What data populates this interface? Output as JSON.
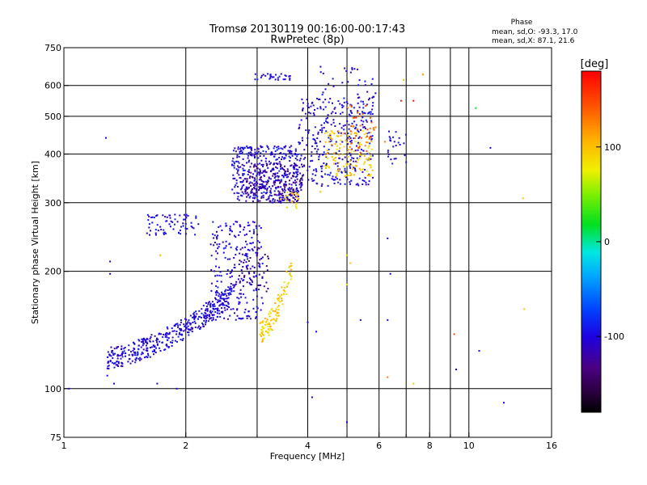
{
  "chart_data": {
    "type": "scatter",
    "title": "Tromsø 20130119 00:16:00-00:17:43",
    "subtitle": "RwPretec (8p)",
    "xlabel": "Frequency [MHz]",
    "ylabel": "Stationary phase Virtual Height [km]",
    "x_scale": "log",
    "y_scale": "log",
    "xlim": [
      1,
      16
    ],
    "ylim": [
      75,
      750
    ],
    "x_ticks": [
      1,
      2,
      4,
      6,
      8,
      10,
      16
    ],
    "x_ticks_minor": [
      3,
      5,
      7,
      9
    ],
    "y_ticks": [
      75,
      100,
      200,
      300,
      400,
      500,
      600,
      750
    ],
    "y_gridlines": [
      100,
      200,
      300,
      400,
      500,
      600
    ],
    "x_gridlines": [
      2,
      3,
      4,
      5,
      6,
      7,
      8,
      9,
      10
    ],
    "grid": true,
    "stats": {
      "heading": "Phase",
      "line1": "mean, sd,O: -93.3, 17.0",
      "line2": "mean, sd,X:  87.1, 21.6"
    },
    "colorbar": {
      "label": "[deg]",
      "ticks": [
        100,
        0,
        -100
      ],
      "range": [
        -180,
        180
      ],
      "colormap": "rainbow"
    },
    "series": [
      {
        "color_phase_deg": -100,
        "clusters": [
          {
            "fmin": 1.28,
            "fmax": 2.6,
            "hmin": 117,
            "hmax": 170,
            "count": 420,
            "curve": true
          },
          {
            "fmin": 2.3,
            "fmax": 3.1,
            "hmin": 150,
            "hmax": 270,
            "count": 260
          },
          {
            "fmin": 1.6,
            "fmax": 2.15,
            "hmin": 248,
            "hmax": 280,
            "count": 70
          },
          {
            "fmin": 2.6,
            "fmax": 3.8,
            "hmin": 300,
            "hmax": 420,
            "count": 420
          },
          {
            "fmin": 3.8,
            "fmax": 5.8,
            "hmin": 330,
            "hmax": 560,
            "count": 320
          },
          {
            "fmin": 2.95,
            "fmax": 3.65,
            "hmin": 620,
            "hmax": 645,
            "count": 30
          },
          {
            "fmin": 4.3,
            "fmax": 5.9,
            "hmin": 500,
            "hmax": 680,
            "count": 50
          },
          {
            "fmin": 6.3,
            "fmax": 7.0,
            "hmin": 370,
            "hmax": 460,
            "count": 25
          }
        ]
      },
      {
        "color_phase_deg": -130,
        "clusters": [
          {
            "fmin": 2.8,
            "fmax": 3.9,
            "hmin": 300,
            "hmax": 380,
            "count": 160
          },
          {
            "fmin": 2.7,
            "fmax": 3.2,
            "hmin": 175,
            "hmax": 230,
            "count": 40
          }
        ]
      },
      {
        "color_phase_deg": 95,
        "clusters": [
          {
            "fmin": 3.05,
            "fmax": 3.65,
            "hmin": 135,
            "hmax": 200,
            "count": 110,
            "curve": true
          },
          {
            "fmin": 4.4,
            "fmax": 5.8,
            "hmin": 350,
            "hmax": 460,
            "count": 130
          },
          {
            "fmin": 3.4,
            "fmax": 3.8,
            "hmin": 290,
            "hmax": 320,
            "count": 20
          }
        ]
      },
      {
        "color_phase_deg": 140,
        "clusters": [
          {
            "fmin": 5.0,
            "fmax": 5.9,
            "hmin": 400,
            "hmax": 540,
            "count": 40
          }
        ]
      }
    ],
    "outliers": [
      {
        "x": 1.27,
        "y": 440,
        "phase": -100
      },
      {
        "x": 1.3,
        "y": 212,
        "phase": -100
      },
      {
        "x": 1.3,
        "y": 197,
        "phase": -100
      },
      {
        "x": 1.28,
        "y": 108,
        "phase": -100
      },
      {
        "x": 1.33,
        "y": 103,
        "phase": -100
      },
      {
        "x": 1.03,
        "y": 100,
        "phase": -100
      },
      {
        "x": 1.7,
        "y": 103,
        "phase": -100
      },
      {
        "x": 1.9,
        "y": 100,
        "phase": -100
      },
      {
        "x": 4.1,
        "y": 95,
        "phase": -100
      },
      {
        "x": 5.0,
        "y": 82,
        "phase": -100
      },
      {
        "x": 5.4,
        "y": 150,
        "phase": -100
      },
      {
        "x": 6.3,
        "y": 150,
        "phase": -100
      },
      {
        "x": 6.3,
        "y": 243,
        "phase": -100
      },
      {
        "x": 6.4,
        "y": 197,
        "phase": -100
      },
      {
        "x": 9.3,
        "y": 112,
        "phase": -100
      },
      {
        "x": 10.6,
        "y": 125,
        "phase": -100
      },
      {
        "x": 12.2,
        "y": 92,
        "phase": -100
      },
      {
        "x": 11.3,
        "y": 415,
        "phase": -100
      },
      {
        "x": 10.4,
        "y": 525,
        "phase": 20
      },
      {
        "x": 4.2,
        "y": 140,
        "phase": -100
      },
      {
        "x": 4.0,
        "y": 148,
        "phase": -100
      },
      {
        "x": 5.0,
        "y": 220,
        "phase": 100
      },
      {
        "x": 5.0,
        "y": 185,
        "phase": 80
      },
      {
        "x": 5.1,
        "y": 210,
        "phase": 100
      },
      {
        "x": 6.3,
        "y": 107,
        "phase": 130
      },
      {
        "x": 7.3,
        "y": 103,
        "phase": 100
      },
      {
        "x": 9.2,
        "y": 138,
        "phase": 150
      },
      {
        "x": 13.7,
        "y": 160,
        "phase": 100
      },
      {
        "x": 13.6,
        "y": 308,
        "phase": 100
      },
      {
        "x": 6.8,
        "y": 548,
        "phase": 175
      },
      {
        "x": 7.3,
        "y": 548,
        "phase": 180
      },
      {
        "x": 6.9,
        "y": 620,
        "phase": 100
      },
      {
        "x": 7.7,
        "y": 640,
        "phase": 120
      },
      {
        "x": 6.2,
        "y": 430,
        "phase": 130
      },
      {
        "x": 4.3,
        "y": 320,
        "phase": 100
      },
      {
        "x": 1.73,
        "y": 220,
        "phase": 110
      }
    ]
  }
}
